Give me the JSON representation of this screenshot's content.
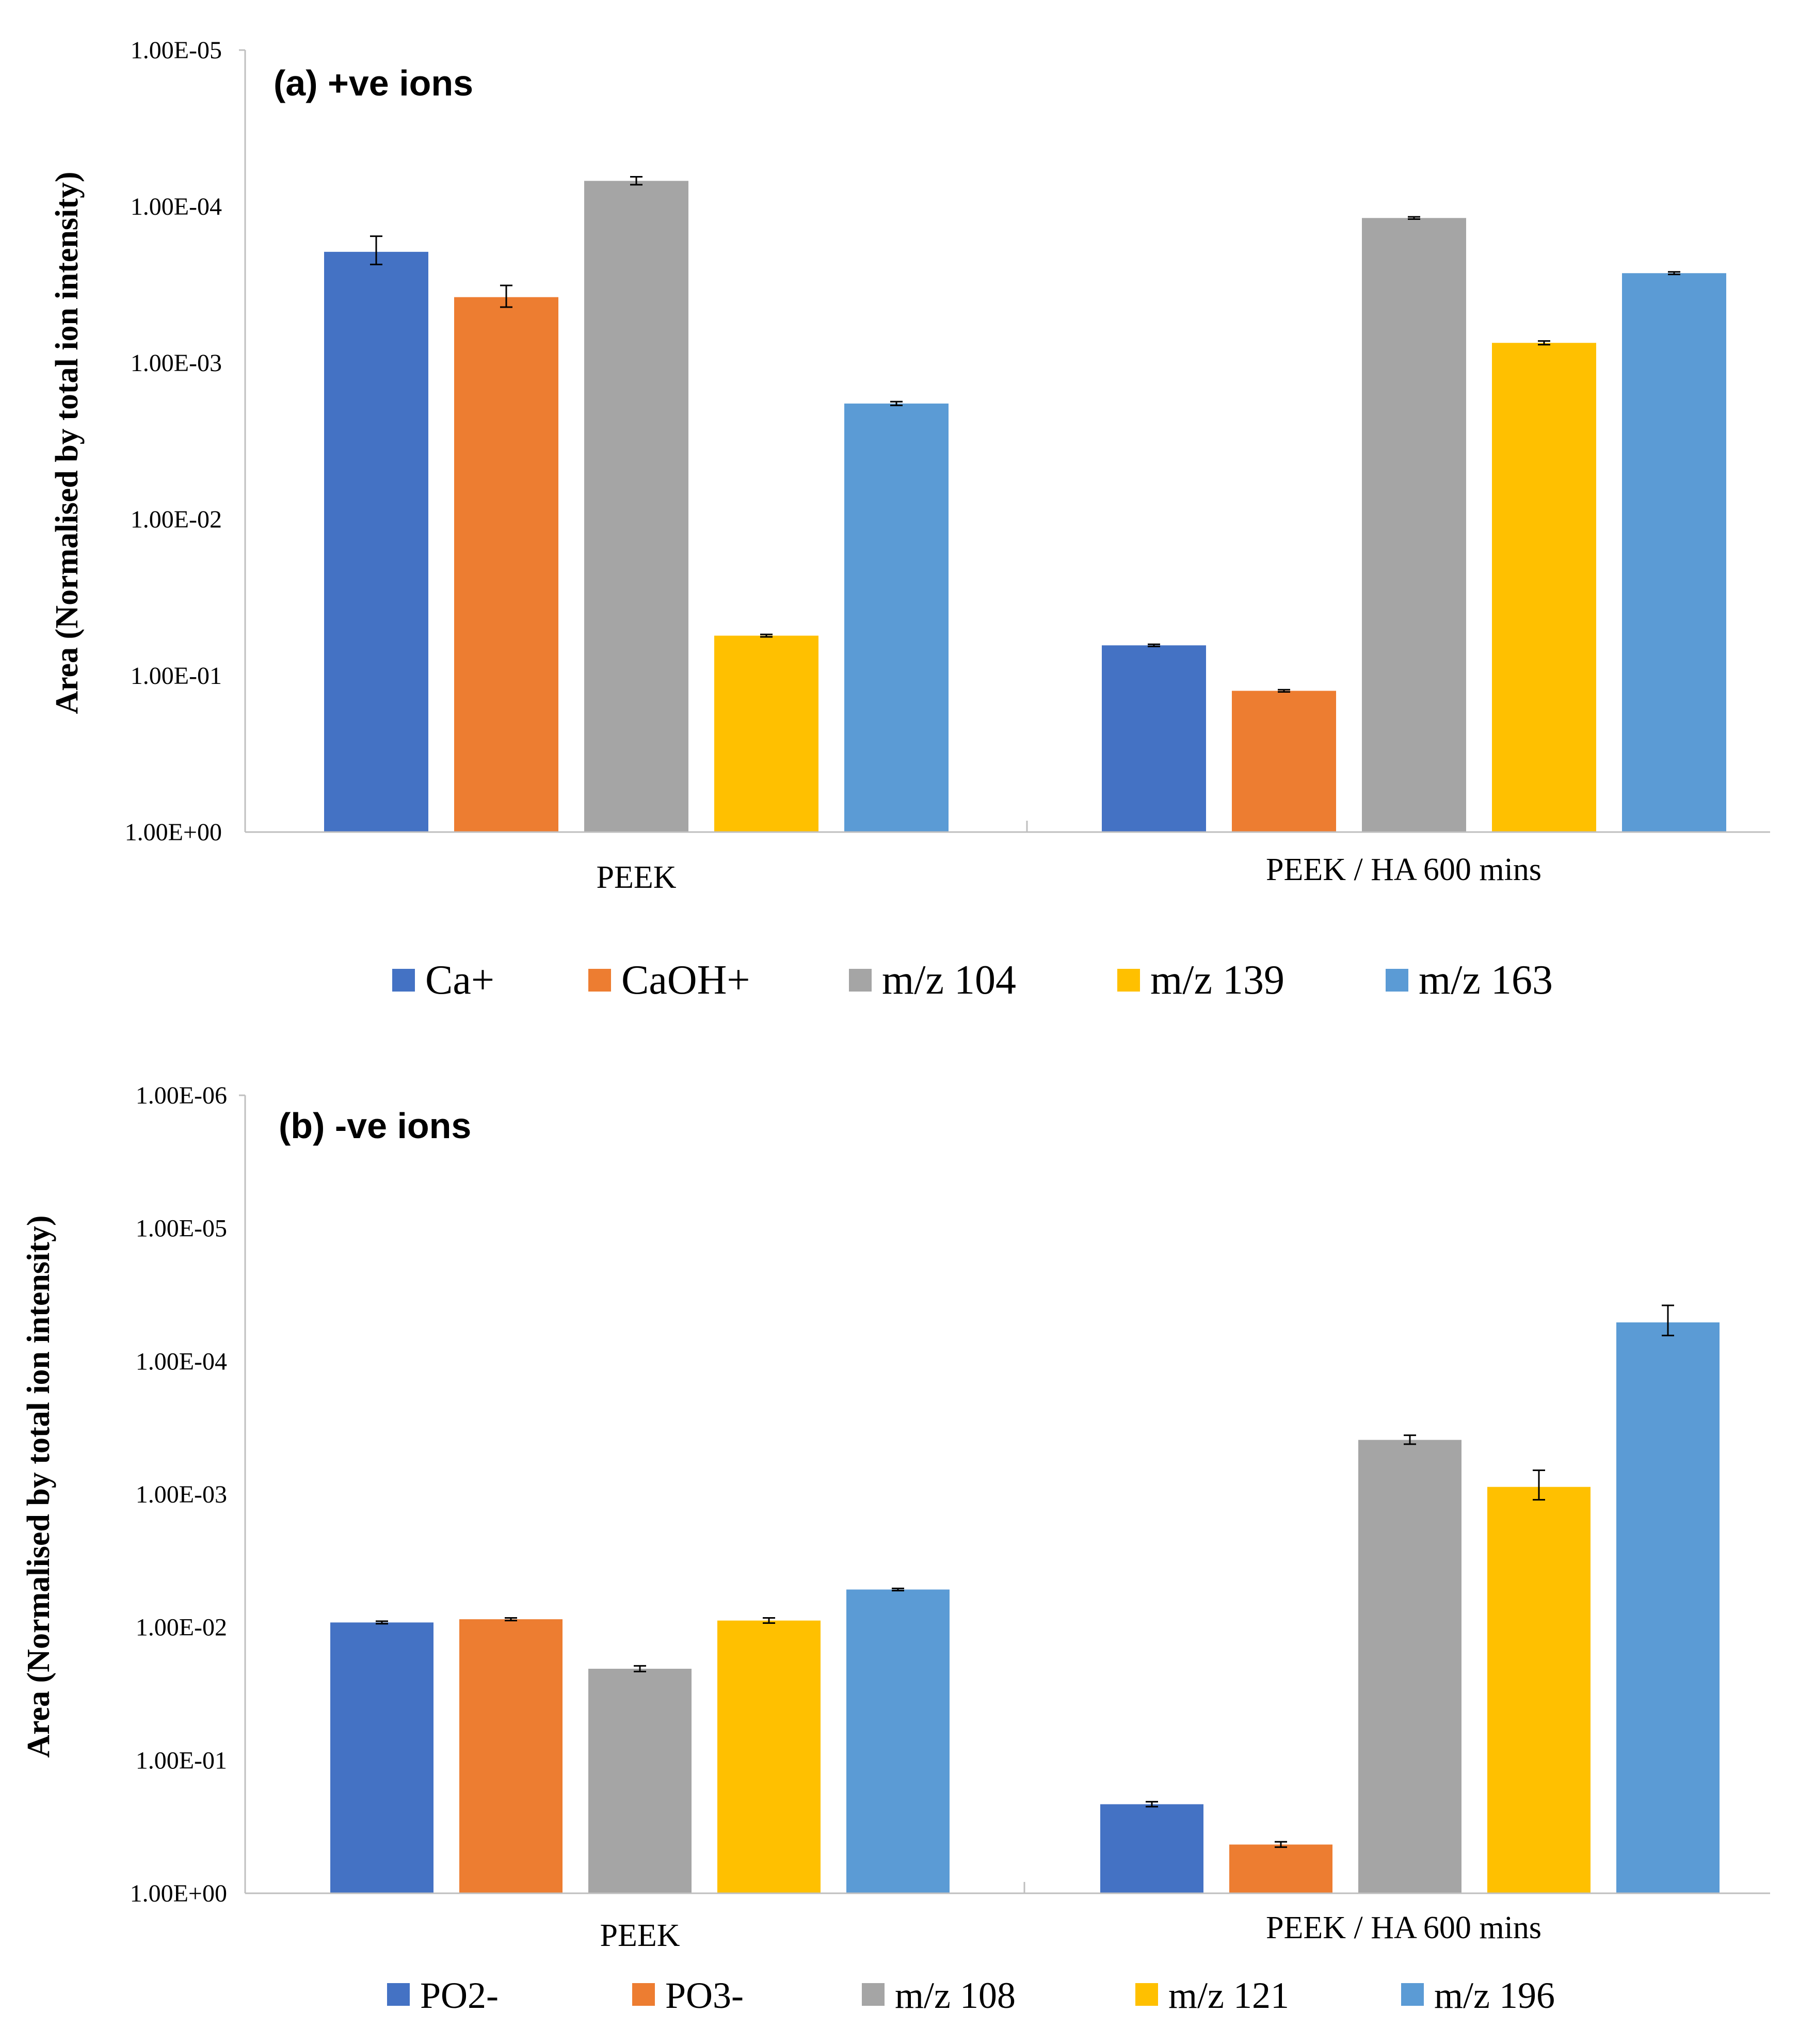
{
  "colors": {
    "series": [
      "#4472C4",
      "#ED7D31",
      "#A5A5A5",
      "#FFC000",
      "#5B9BD5"
    ],
    "axis": "#BFBFBF",
    "errorbar": "#000000"
  },
  "chart_data": [
    {
      "type": "bar",
      "title": "(a) +ve ions",
      "ylabel": "Area (Normalised by total ion intensity)",
      "yscale": "log",
      "ylim": [
        1e-05,
        1
      ],
      "yticks": [
        "1.00E-05",
        "1.00E-04",
        "1.00E-03",
        "1.00E-02",
        "1.00E-01",
        "1.00E+00"
      ],
      "categories": [
        "PEEK",
        "PEEK / HA 600 mins"
      ],
      "legend_position": "bottom",
      "series": [
        {
          "name": "Ca+",
          "values": [
            0.000195,
            0.064
          ],
          "errors": [
            4e-05,
            0.001
          ]
        },
        {
          "name": "CaOH+",
          "values": [
            0.00038,
            0.125
          ],
          "errors": [
            6e-05,
            0.002
          ]
        },
        {
          "name": "m/z 104",
          "values": [
            6.86e-05,
            0.0001185
          ],
          "errors": [
            4e-06,
            2e-06
          ]
        },
        {
          "name": "m/z 139",
          "values": [
            0.0555,
            0.000745
          ],
          "errors": [
            0.001,
            2e-05
          ]
        },
        {
          "name": "m/z 163",
          "values": [
            0.00182,
            0.000267
          ],
          "errors": [
            5e-05,
            5e-06
          ]
        }
      ]
    },
    {
      "type": "bar",
      "title": "(b) -ve ions",
      "ylabel": "Area (Normalised by total ion intensity)",
      "yscale": "log",
      "ylim": [
        1e-06,
        1
      ],
      "yticks": [
        "1.00E-06",
        "1.00E-05",
        "1.00E-04",
        "1.00E-03",
        "1.00E-02",
        "1.00E-01",
        "1.00E+00"
      ],
      "categories": [
        "PEEK",
        "PEEK / HA 600 mins"
      ],
      "legend_position": "bottom",
      "series": [
        {
          "name": "PO2-",
          "values": [
            0.0092,
            0.214
          ],
          "errors": [
            0.0002,
            0.009
          ]
        },
        {
          "name": "PO3-",
          "values": [
            0.0087,
            0.43
          ],
          "errors": [
            0.0002,
            0.02
          ]
        },
        {
          "name": "m/z 108",
          "values": [
            0.0205,
            0.00039
          ],
          "errors": [
            0.001,
            3e-05
          ]
        },
        {
          "name": "m/z 121",
          "values": [
            0.0089,
            0.00088
          ],
          "errors": [
            0.0004,
            0.00022
          ]
        },
        {
          "name": "m/z 196",
          "values": [
            0.0052,
            5.1e-05
          ],
          "errors": [
            0.0001,
            1.3e-05
          ]
        }
      ]
    }
  ]
}
